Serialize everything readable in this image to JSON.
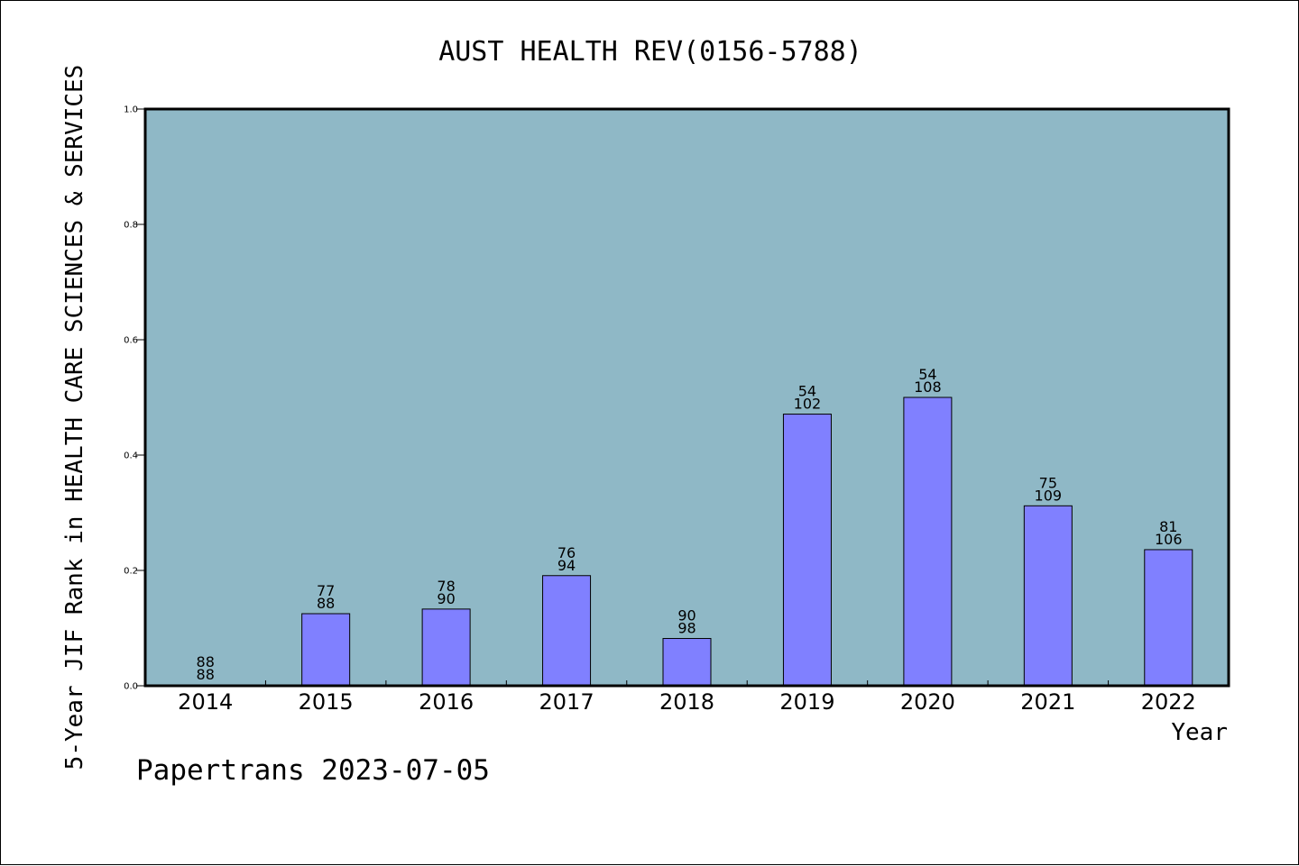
{
  "chart_data": {
    "type": "bar",
    "title": "AUST HEALTH REV(0156-5788)",
    "ylabel": "5-Year JIF Rank in HEALTH CARE SCIENCES & SERVICES",
    "xlabel": "Year",
    "footer": "Papertrans 2023-07-05",
    "ylim": [
      0,
      1.0
    ],
    "yticks": [
      "0.0",
      "0.2",
      "0.4",
      "0.6",
      "0.8",
      "1.0"
    ],
    "grid": false,
    "colors": {
      "plot_bg": "#8fb8c6",
      "bar_fill": "#8080ff",
      "bar_stroke": "#000000"
    },
    "categories": [
      "2014",
      "2015",
      "2016",
      "2017",
      "2018",
      "2019",
      "2020",
      "2021",
      "2022"
    ],
    "values": [
      0.0,
      0.125,
      0.133,
      0.191,
      0.082,
      0.471,
      0.5,
      0.312,
      0.236
    ],
    "rank": [
      "88",
      "77",
      "78",
      "76",
      "90",
      "54",
      "54",
      "75",
      "81"
    ],
    "total": [
      "88",
      "88",
      "90",
      "94",
      "98",
      "102",
      "108",
      "109",
      "106"
    ]
  }
}
